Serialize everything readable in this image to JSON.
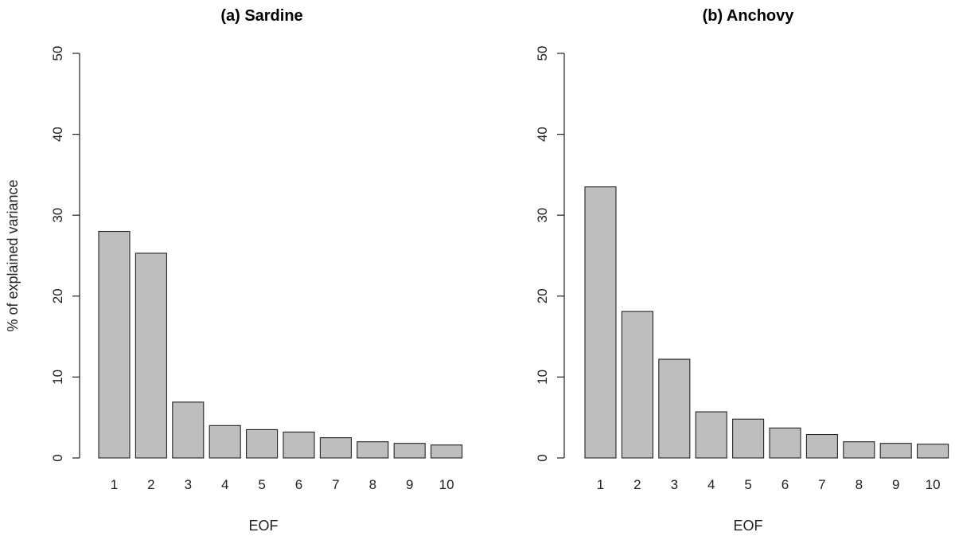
{
  "chart_data": [
    {
      "type": "bar",
      "title": "(a) Sardine",
      "xlabel": "EOF",
      "ylabel": "% of explained variance",
      "categories": [
        "1",
        "2",
        "3",
        "4",
        "5",
        "6",
        "7",
        "8",
        "9",
        "10"
      ],
      "values": [
        28.0,
        25.3,
        6.9,
        4.0,
        3.5,
        3.2,
        2.5,
        2.0,
        1.8,
        1.6
      ],
      "ylim": [
        0,
        50
      ],
      "yticks": [
        "0",
        "10",
        "20",
        "30",
        "40",
        "50"
      ],
      "bar_color": "#bebebe",
      "grid": false
    },
    {
      "type": "bar",
      "title": "(b) Anchovy",
      "xlabel": "EOF",
      "ylabel": "",
      "categories": [
        "1",
        "2",
        "3",
        "4",
        "5",
        "6",
        "7",
        "8",
        "9",
        "10"
      ],
      "values": [
        33.5,
        18.1,
        12.2,
        5.7,
        4.8,
        3.7,
        2.9,
        2.0,
        1.8,
        1.7
      ],
      "ylim": [
        0,
        50
      ],
      "yticks": [
        "0",
        "10",
        "20",
        "30",
        "40",
        "50"
      ],
      "bar_color": "#bebebe",
      "grid": false
    }
  ]
}
